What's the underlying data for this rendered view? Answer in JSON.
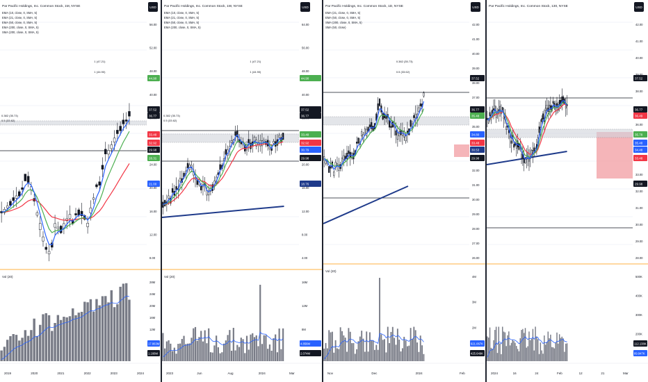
{
  "panes": [
    {
      "id": "p1",
      "title": "Par Pacific Holdings, Inc. Common Stock, 1M, NYSE",
      "indicators": [
        "EMA (10, close, 0, SMA, 5)",
        "EMA (21, close, 0, SMA, 5)",
        "EMA (50, close, 0, SMA, 5)",
        "EMA (200, close, 0, SMA, 5)",
        "SMA (200, close, 0, SMA, 5)"
      ],
      "currency": "USD",
      "price_labels": [
        "56.00",
        "52.00",
        "48.00",
        "40.00",
        "36.00",
        "32.00",
        "24.00",
        "20.00",
        "16.00",
        "12.00",
        "8.00"
      ],
      "badges": [
        {
          "text": "44.90",
          "color": "#4caf50"
        },
        {
          "text": "37.52",
          "color": "#131722"
        },
        {
          "text": "36.77",
          "color": "#131722"
        },
        {
          "text": "33.48",
          "color": "#f23645"
        },
        {
          "text": "32.92",
          "color": "#f23645"
        },
        {
          "text": "29.98",
          "color": "#131722"
        },
        {
          "text": "28.31",
          "color": "#4caf50"
        },
        {
          "text": "21.00",
          "color": "#2962ff"
        }
      ],
      "annotations": [
        "1 (47.21)",
        "1 (44.90)",
        "0.382 (35.73)",
        "0.5 (33.62)"
      ],
      "volume_title": "Vol (20)",
      "volume_labels": [
        "28M",
        "24M",
        "20M",
        "16M",
        "12M",
        "8M",
        "4M"
      ],
      "volume_badges": [
        {
          "text": "17.863M",
          "color": "#2962ff"
        },
        {
          "text": "1.166M",
          "color": "#131722"
        }
      ],
      "time_labels": [
        "2019",
        "2020",
        "2021",
        "2022",
        "2023",
        "2024"
      ]
    },
    {
      "id": "p2",
      "title": "Par Pacific Holdings, Inc. Common Stock, 1W, NYSE",
      "indicators": [
        "EMA (10, close, 0, SMA, 5)",
        "EMA (21, close, 0, SMA, 5)",
        "EMA (50, close, 0, SMA, 5)",
        "EMA (200, close, 0, SMA, 5)"
      ],
      "currency": "USD",
      "price_labels": [
        "64.00",
        "56.00",
        "48.00",
        "40.00",
        "32.00",
        "24.00",
        "20.00",
        "16.00",
        "12.00",
        "8.00",
        "4.00"
      ],
      "badges": [
        {
          "text": "44.90",
          "color": "#4caf50"
        },
        {
          "text": "37.52",
          "color": "#131722"
        },
        {
          "text": "36.77",
          "color": "#131722"
        },
        {
          "text": "33.48",
          "color": "#4caf50"
        },
        {
          "text": "32.92",
          "color": "#f23645"
        },
        {
          "text": "30.79",
          "color": "#2962ff"
        },
        {
          "text": "29.98",
          "color": "#131722"
        },
        {
          "text": "18.76",
          "color": "#1e3a8a"
        }
      ],
      "annotations": [
        "1 (47.21)",
        "1 (44.90)",
        "0.382 (35.73)",
        "0.5 (33.62)"
      ],
      "volume_title": "Vol (20)",
      "volume_labels": [
        "16M",
        "12M",
        "8M",
        "4M"
      ],
      "volume_badges": [
        {
          "text": "4.856M",
          "color": "#2962ff"
        },
        {
          "text": "2.074M",
          "color": "#131722"
        }
      ],
      "time_labels": [
        "2023",
        "Jun",
        "Aug",
        "2024",
        "Mar"
      ]
    },
    {
      "id": "p3",
      "title": "Par Pacific Holdings, Inc. Common Stock, 1D, NYSE",
      "indicators": [
        "EMA (21, close, 0, SMA, 5)",
        "EMA (50, close, 0, SMA, 5)",
        "SMA (200, close, 0, SMA, 5)",
        "SMA (50, close)"
      ],
      "currency": "USD",
      "price_labels": [
        "42.00",
        "41.00",
        "40.00",
        "39.00",
        "38.00",
        "37.00",
        "36.00",
        "35.00",
        "34.00",
        "33.00",
        "32.00",
        "31.00",
        "30.00",
        "29.00",
        "28.00",
        "27.00",
        "26.00"
      ],
      "badges": [
        {
          "text": "37.52",
          "color": "#131722"
        },
        {
          "text": "36.77",
          "color": "#131722"
        },
        {
          "text": "35.48",
          "color": "#4caf50"
        },
        {
          "text": "34.80",
          "color": "#2962ff"
        },
        {
          "text": "33.48",
          "color": "#f23645"
        },
        {
          "text": "30.53",
          "color": "#1e3a8a"
        },
        {
          "text": "29.98",
          "color": "#131722"
        }
      ],
      "annotations": [
        "0.382 (35.73)",
        "0.5 (33.62)"
      ],
      "volume_title": "Vol (20)",
      "volume_labels": [
        "4M",
        "3M",
        "2M",
        "1M"
      ],
      "volume_badges": [
        {
          "text": "921.067K",
          "color": "#2962ff"
        },
        {
          "text": "425.649K",
          "color": "#131722"
        }
      ],
      "time_labels": [
        "Nov",
        "Dec",
        "2024",
        "Feb"
      ]
    },
    {
      "id": "p4",
      "title": "Par Pacific Holdings, Inc. Common Stock, 130, NYSE",
      "indicators": [],
      "currency": "USD",
      "price_labels": [
        "42.00",
        "41.00",
        "40.00",
        "39.00",
        "38.00",
        "37.00",
        "36.00",
        "35.00",
        "34.00",
        "33.00",
        "32.00",
        "31.00",
        "30.00",
        "29.00",
        "28.00"
      ],
      "badges": [
        {
          "text": "37.52",
          "color": "#131722"
        },
        {
          "text": "36.77",
          "color": "#131722"
        },
        {
          "text": "36.49",
          "color": "#f23645"
        },
        {
          "text": "35.78",
          "color": "#4caf50"
        },
        {
          "text": "35.48",
          "color": "#2962ff"
        },
        {
          "text": "34.48",
          "color": "#2962ff"
        },
        {
          "text": "33.48",
          "color": "#f23645"
        },
        {
          "text": "29.98",
          "color": "#131722"
        }
      ],
      "annotations": [],
      "volume_title": "",
      "volume_labels": [
        "500K",
        "400K",
        "300K",
        "200K",
        "100K"
      ],
      "volume_badges": [
        {
          "text": "112.138K",
          "color": "#131722"
        },
        {
          "text": "89.947K",
          "color": "#2962ff"
        }
      ],
      "time_labels": [
        "2024",
        "16",
        "24",
        "Feb",
        "12",
        "21",
        "Mar"
      ]
    }
  ]
}
